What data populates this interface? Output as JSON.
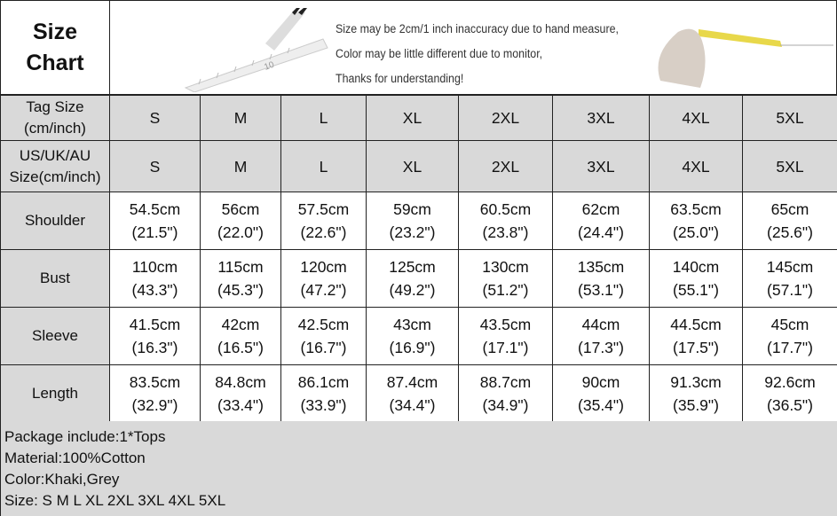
{
  "title": [
    "Size",
    "Chart"
  ],
  "notice": [
    "Size may be 2cm/1 inch inaccuracy due to hand measure,",
    "Color may be little different due to monitor,",
    "Thanks for understanding!"
  ],
  "header_rows": [
    {
      "label": [
        "Tag Size",
        "(cm/inch)"
      ],
      "values": [
        "S",
        "M",
        "L",
        "XL",
        "2XL",
        "3XL",
        "4XL",
        "5XL"
      ]
    },
    {
      "label": [
        "US/UK/AU",
        "Size(cm/inch)"
      ],
      "values": [
        "S",
        "M",
        "L",
        "XL",
        "2XL",
        "3XL",
        "4XL",
        "5XL"
      ]
    }
  ],
  "rows": [
    {
      "label": "Shoulder",
      "cm": [
        "54.5cm",
        "56cm",
        "57.5cm",
        "59cm",
        "60.5cm",
        "62cm",
        "63.5cm",
        "65cm"
      ],
      "inch": [
        "(21.5\")",
        "(22.0\")",
        "(22.6\")",
        "(23.2\")",
        "(23.8\")",
        "(24.4\")",
        "(25.0\")",
        "(25.6\")"
      ]
    },
    {
      "label": "Bust",
      "cm": [
        "110cm",
        "115cm",
        "120cm",
        "125cm",
        "130cm",
        "135cm",
        "140cm",
        "145cm"
      ],
      "inch": [
        "(43.3\")",
        "(45.3\")",
        "(47.2\")",
        "(49.2\")",
        "(51.2\")",
        "(53.1\")",
        "(55.1\")",
        "(57.1\")"
      ]
    },
    {
      "label": "Sleeve",
      "cm": [
        "41.5cm",
        "42cm",
        "42.5cm",
        "43cm",
        "43.5cm",
        "44cm",
        "44.5cm",
        "45cm"
      ],
      "inch": [
        "(16.3\")",
        "(16.5\")",
        "(16.7\")",
        "(16.9\")",
        "(17.1\")",
        "(17.3\")",
        "(17.5\")",
        "(17.7\")"
      ]
    },
    {
      "label": "Length",
      "cm": [
        "83.5cm",
        "84.8cm",
        "86.1cm",
        "87.4cm",
        "88.7cm",
        "90cm",
        "91.3cm",
        "92.6cm"
      ],
      "inch": [
        "(32.9\")",
        "(33.4\")",
        "(33.9\")",
        "(34.4\")",
        "(34.9\")",
        "(35.4\")",
        "(35.9\")",
        "(36.5\")"
      ]
    }
  ],
  "footer": [
    "Package include:1*Tops",
    "Material:100%Cotton",
    "Color:Khaki,Grey",
    "Size: S M L XL 2XL 3XL 4XL 5XL"
  ],
  "colors": {
    "label_bg": "#d9d9d9",
    "border": "#222222"
  }
}
